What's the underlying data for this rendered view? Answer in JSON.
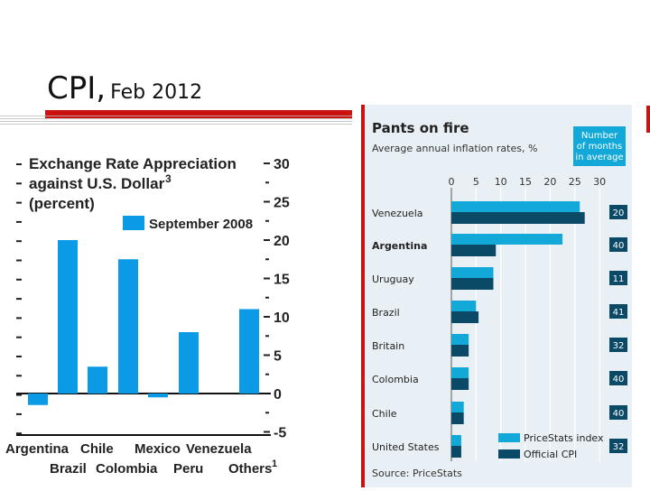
{
  "slide": {
    "title_main": "CPI,",
    "title_sub": "Feb 2012"
  },
  "colors": {
    "accent_red": "#cc1111",
    "bar_blue": "#0a9ae6",
    "pricestats": "#12a8d8",
    "official": "#0b4a66",
    "panel_bg": "#e9f0f5"
  },
  "chart_data": [
    {
      "type": "bar",
      "title": "Exchange Rate Appreciation against U.S. Dollar",
      "title_superscript": "3",
      "subtitle": "(percent)",
      "legend": [
        "September 2008"
      ],
      "categories_top": [
        "Argentina",
        "Chile",
        "Mexico",
        "Venezuela"
      ],
      "categories_bottom": [
        "Brazil",
        "Colombia",
        "Peru",
        "Others"
      ],
      "others_superscript": "1",
      "categories": [
        "Argentina",
        "Brazil",
        "Chile",
        "Colombia",
        "Mexico",
        "Peru",
        "Venezuela",
        "Others"
      ],
      "series": [
        {
          "name": "September 2008",
          "values": [
            -1.5,
            20,
            3.5,
            17.5,
            -0.5,
            8,
            null,
            11
          ]
        }
      ],
      "yticks": [
        "30",
        "25",
        "20",
        "15",
        "10",
        "5",
        "0",
        "-5"
      ],
      "ylim": [
        -5,
        30
      ]
    },
    {
      "type": "bar",
      "orientation": "horizontal",
      "title": "Pants on fire",
      "subtitle": "Average annual inflation rates, %",
      "column_header": "Number of months in average",
      "categories": [
        "Venezuela",
        "Argentina",
        "Uruguay",
        "Brazil",
        "Britain",
        "Colombia",
        "Chile",
        "United States"
      ],
      "series": [
        {
          "name": "PriceStats index",
          "values": [
            26,
            22.5,
            8.5,
            5,
            3.5,
            3.5,
            2.5,
            2
          ]
        },
        {
          "name": "Official CPI",
          "values": [
            27,
            9,
            8.5,
            5.5,
            3.5,
            3.5,
            2.5,
            2
          ]
        }
      ],
      "months": [
        "20",
        "40",
        "11",
        "41",
        "32",
        "40",
        "40",
        "32"
      ],
      "xticks": [
        "0",
        "5",
        "10",
        "15",
        "20",
        "25",
        "30"
      ],
      "xlim": [
        0,
        30
      ],
      "source": "Source: PriceStats"
    }
  ]
}
